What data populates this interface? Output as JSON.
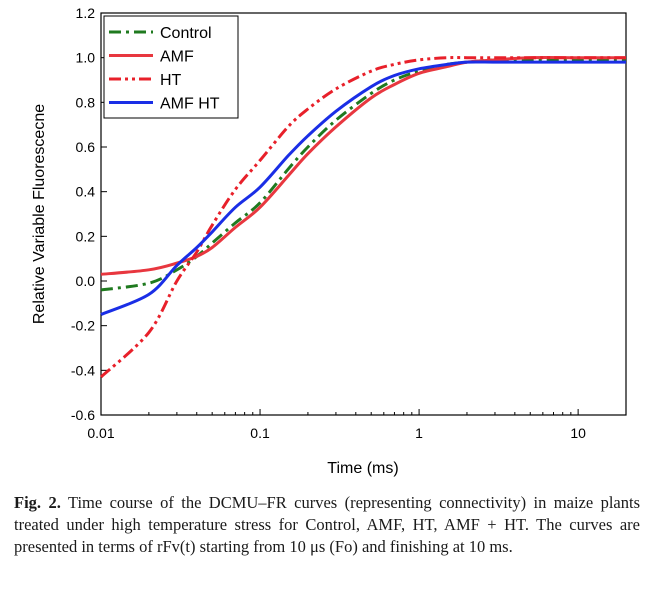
{
  "chart_data": {
    "type": "line",
    "xlabel": "Time (ms)",
    "ylabel": "Relative Variable Fluorescecne",
    "xscale": "log",
    "xlim": [
      0.01,
      20
    ],
    "ylim": [
      -0.6,
      1.2
    ],
    "xticks": [
      {
        "value": 0.01,
        "label": "0.01"
      },
      {
        "value": 0.1,
        "label": "0.1"
      },
      {
        "value": 1,
        "label": "1"
      },
      {
        "value": 10,
        "label": "10"
      }
    ],
    "yticks": [
      {
        "value": -0.6,
        "label": "-0.6"
      },
      {
        "value": -0.4,
        "label": "-0.4"
      },
      {
        "value": -0.2,
        "label": "-0.2"
      },
      {
        "value": 0.0,
        "label": "0.0"
      },
      {
        "value": 0.2,
        "label": "0.2"
      },
      {
        "value": 0.4,
        "label": "0.4"
      },
      {
        "value": 0.6,
        "label": "0.6"
      },
      {
        "value": 0.8,
        "label": "0.8"
      },
      {
        "value": 1.0,
        "label": "1.0"
      },
      {
        "value": 1.2,
        "label": "1.2"
      }
    ],
    "legend_position": "top-left",
    "series": [
      {
        "name": "Control",
        "color": "#1f7a1f",
        "dash": "dash-dot",
        "x": [
          0.01,
          0.02,
          0.03,
          0.04,
          0.05,
          0.07,
          0.1,
          0.15,
          0.2,
          0.3,
          0.5,
          0.7,
          1,
          1.5,
          2,
          3,
          5,
          10,
          20
        ],
        "y": [
          -0.04,
          -0.01,
          0.05,
          0.11,
          0.17,
          0.26,
          0.35,
          0.5,
          0.6,
          0.72,
          0.84,
          0.9,
          0.94,
          0.97,
          0.98,
          0.99,
          0.99,
          0.99,
          0.99
        ]
      },
      {
        "name": "AMF",
        "color": "#e8373f",
        "dash": "solid",
        "x": [
          0.01,
          0.02,
          0.03,
          0.04,
          0.05,
          0.07,
          0.1,
          0.15,
          0.2,
          0.3,
          0.5,
          0.7,
          1,
          1.5,
          2,
          3,
          5,
          10,
          20
        ],
        "y": [
          0.03,
          0.05,
          0.08,
          0.11,
          0.15,
          0.24,
          0.33,
          0.47,
          0.57,
          0.69,
          0.82,
          0.88,
          0.93,
          0.96,
          0.98,
          0.99,
          1.0,
          1.0,
          1.0
        ]
      },
      {
        "name": "HT",
        "color": "#e8202a",
        "dash": "dash-dot-dot",
        "x": [
          0.01,
          0.02,
          0.03,
          0.04,
          0.05,
          0.07,
          0.1,
          0.15,
          0.2,
          0.3,
          0.5,
          0.7,
          1,
          1.5,
          2,
          3,
          5,
          10,
          20
        ],
        "y": [
          -0.43,
          -0.23,
          0.0,
          0.13,
          0.25,
          0.41,
          0.54,
          0.69,
          0.77,
          0.86,
          0.94,
          0.97,
          0.99,
          1.0,
          1.0,
          1.0,
          1.0,
          1.0,
          1.0
        ]
      },
      {
        "name": "AMF HT",
        "color": "#1a2ee6",
        "dash": "solid",
        "x": [
          0.01,
          0.02,
          0.03,
          0.04,
          0.05,
          0.07,
          0.1,
          0.15,
          0.2,
          0.3,
          0.5,
          0.7,
          1,
          1.5,
          2,
          3,
          5,
          10,
          20
        ],
        "y": [
          -0.15,
          -0.06,
          0.07,
          0.15,
          0.22,
          0.33,
          0.42,
          0.56,
          0.65,
          0.76,
          0.87,
          0.92,
          0.95,
          0.97,
          0.98,
          0.98,
          0.98,
          0.98,
          0.98
        ]
      }
    ]
  },
  "caption": {
    "label": "Fig. 2.",
    "text": "Time course of the DCMU–FR curves (representing connectivity) in maize plants treated under high temperature stress for Control, AMF, HT, AMF + HT. The curves are presented in terms of rFv(t) starting from 10 μs (Fo) and finishing at 10 ms."
  }
}
